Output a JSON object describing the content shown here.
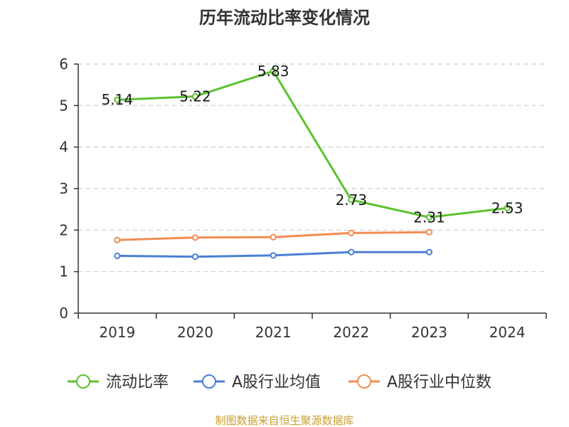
{
  "chart_data": {
    "type": "line",
    "title": "历年流动比率变化情况",
    "categories": [
      "2019",
      "2020",
      "2021",
      "2022",
      "2023",
      "2024"
    ],
    "ylim": [
      0,
      6
    ],
    "yticks": [
      "0",
      "1",
      "2",
      "3",
      "4",
      "5",
      "6"
    ],
    "grid": true,
    "legend_position": "bottom",
    "series": [
      {
        "name": "流动比率",
        "color": "#5cc22e",
        "values": [
          5.14,
          5.22,
          5.83,
          2.73,
          2.31,
          2.53
        ],
        "labels": [
          "5.14",
          "5.22",
          "5.83",
          "2.73",
          "2.31",
          "2.53"
        ]
      },
      {
        "name": "A股行业均值",
        "color": "#4a7fd6",
        "values": [
          1.38,
          1.36,
          1.39,
          1.47,
          1.47,
          null
        ]
      },
      {
        "name": "A股行业中位数",
        "color": "#f28c52",
        "values": [
          1.76,
          1.82,
          1.83,
          1.93,
          1.95,
          null
        ]
      }
    ]
  },
  "footer": {
    "source": "制图数据来自恒生聚源数据库"
  }
}
